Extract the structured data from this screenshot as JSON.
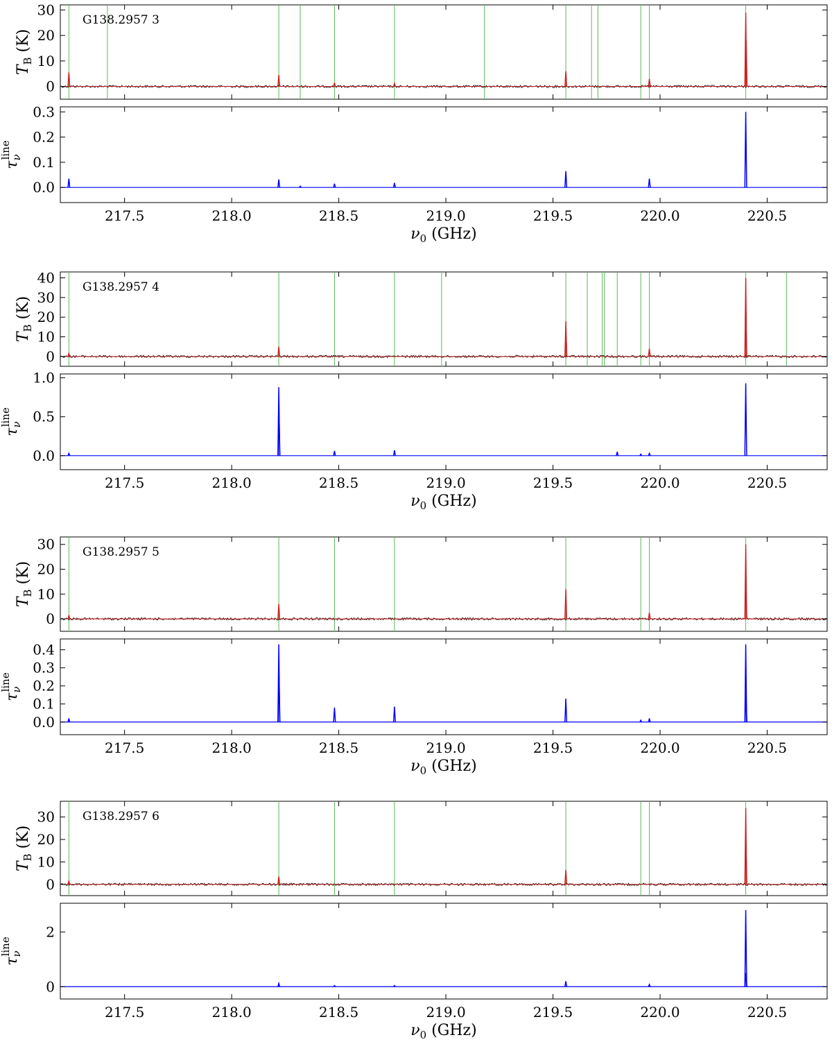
{
  "figure": {
    "x_axis_label_main": "ν",
    "x_axis_label_sub": "0",
    "x_axis_label_unit": " (GHz)",
    "tb_label_main": "T",
    "tb_label_sub": "B",
    "tb_label_unit": " (K)",
    "tau_label_main": "τ",
    "tau_label_sub": "ν",
    "tau_label_sup": "line"
  },
  "colors": {
    "observed_spectrum": "#000000",
    "model_spectrum": "#cc1f1f",
    "optical_depth": "#0000ff",
    "line_markers": "#5cb85c"
  },
  "chart_data": [
    {
      "type": "line",
      "title": "G138.2957 3",
      "xlim": [
        217.2,
        220.78
      ],
      "x_ticks": [
        "217.5",
        "218.0",
        "218.5",
        "219.0",
        "219.5",
        "220.0",
        "220.5"
      ],
      "line_markers_ghz": [
        217.24,
        217.42,
        218.22,
        218.32,
        218.48,
        218.76,
        219.18,
        219.56,
        219.68,
        219.71,
        219.91,
        219.95,
        220.4
      ],
      "tb": {
        "ylabel": "T_B (K)",
        "ylim": [
          -5,
          32
        ],
        "y_ticks": [
          "0",
          "10",
          "20",
          "30"
        ],
        "peaks": [
          {
            "x": 217.24,
            "y": 5.5
          },
          {
            "x": 218.22,
            "y": 4.5
          },
          {
            "x": 218.48,
            "y": 1.5
          },
          {
            "x": 218.76,
            "y": 1.2
          },
          {
            "x": 219.56,
            "y": 6.0
          },
          {
            "x": 219.95,
            "y": 3.0
          },
          {
            "x": 220.4,
            "y": 29
          },
          {
            "x": 220.402,
            "y": 18
          }
        ]
      },
      "tau": {
        "ylabel": "τ_ν^line",
        "ylim": [
          -0.06,
          0.32
        ],
        "y_ticks": [
          "0.0",
          "0.1",
          "0.2",
          "0.3"
        ],
        "peaks": [
          {
            "x": 217.24,
            "y": 0.035
          },
          {
            "x": 218.22,
            "y": 0.032
          },
          {
            "x": 218.32,
            "y": 0.005
          },
          {
            "x": 218.48,
            "y": 0.015
          },
          {
            "x": 218.76,
            "y": 0.018
          },
          {
            "x": 219.56,
            "y": 0.065
          },
          {
            "x": 219.95,
            "y": 0.035
          },
          {
            "x": 220.4,
            "y": 0.3
          }
        ]
      }
    },
    {
      "type": "line",
      "title": "G138.2957 4",
      "xlim": [
        217.2,
        220.78
      ],
      "x_ticks": [
        "217.5",
        "218.0",
        "218.5",
        "219.0",
        "219.5",
        "220.0",
        "220.5"
      ],
      "line_markers_ghz": [
        217.24,
        218.22,
        218.48,
        218.76,
        218.98,
        219.56,
        219.66,
        219.73,
        219.74,
        219.8,
        219.91,
        219.95,
        220.4,
        220.59
      ],
      "tb": {
        "ylabel": "T_B (K)",
        "ylim": [
          -5,
          43
        ],
        "y_ticks": [
          "0",
          "10",
          "20",
          "30",
          "40"
        ],
        "peaks": [
          {
            "x": 217.24,
            "y": 1.5
          },
          {
            "x": 218.22,
            "y": 5.0
          },
          {
            "x": 219.56,
            "y": 18
          },
          {
            "x": 219.561,
            "y": 11
          },
          {
            "x": 219.95,
            "y": 4.0
          },
          {
            "x": 220.4,
            "y": 40
          },
          {
            "x": 220.401,
            "y": 13
          }
        ]
      },
      "tau": {
        "ylabel": "τ_ν^line",
        "ylim": [
          -0.18,
          1.05
        ],
        "y_ticks": [
          "0.0",
          "0.5",
          "1.0"
        ],
        "peaks": [
          {
            "x": 217.24,
            "y": 0.03
          },
          {
            "x": 218.22,
            "y": 0.88
          },
          {
            "x": 218.221,
            "y": 0.55
          },
          {
            "x": 218.48,
            "y": 0.06
          },
          {
            "x": 218.76,
            "y": 0.07
          },
          {
            "x": 219.8,
            "y": 0.05
          },
          {
            "x": 219.91,
            "y": 0.02
          },
          {
            "x": 219.95,
            "y": 0.03
          },
          {
            "x": 220.4,
            "y": 0.93
          }
        ]
      }
    },
    {
      "type": "line",
      "title": "G138.2957 5",
      "xlim": [
        217.2,
        220.78
      ],
      "x_ticks": [
        "217.5",
        "218.0",
        "218.5",
        "219.0",
        "219.5",
        "220.0",
        "220.5"
      ],
      "line_markers_ghz": [
        217.24,
        218.22,
        218.48,
        218.76,
        219.56,
        219.91,
        219.95,
        220.4
      ],
      "tb": {
        "ylabel": "T_B (K)",
        "ylim": [
          -5,
          33
        ],
        "y_ticks": [
          "0",
          "10",
          "20",
          "30"
        ],
        "peaks": [
          {
            "x": 217.24,
            "y": 1.5
          },
          {
            "x": 218.22,
            "y": 6.0
          },
          {
            "x": 219.56,
            "y": 12
          },
          {
            "x": 219.95,
            "y": 2.5
          },
          {
            "x": 220.4,
            "y": 30
          },
          {
            "x": 220.401,
            "y": 11
          }
        ]
      },
      "tau": {
        "ylabel": "τ_ν^line",
        "ylim": [
          -0.07,
          0.46
        ],
        "y_ticks": [
          "0.0",
          "0.1",
          "0.2",
          "0.3",
          "0.4"
        ],
        "peaks": [
          {
            "x": 217.24,
            "y": 0.02
          },
          {
            "x": 218.22,
            "y": 0.43
          },
          {
            "x": 218.221,
            "y": 0.26
          },
          {
            "x": 218.48,
            "y": 0.08
          },
          {
            "x": 218.76,
            "y": 0.085
          },
          {
            "x": 219.56,
            "y": 0.13
          },
          {
            "x": 219.91,
            "y": 0.01
          },
          {
            "x": 219.95,
            "y": 0.02
          },
          {
            "x": 220.4,
            "y": 0.43
          },
          {
            "x": 220.401,
            "y": 0.15
          }
        ]
      }
    },
    {
      "type": "line",
      "title": "G138.2957 6",
      "xlim": [
        217.2,
        220.78
      ],
      "x_ticks": [
        "217.5",
        "218.0",
        "218.5",
        "219.0",
        "219.5",
        "220.0",
        "220.5"
      ],
      "line_markers_ghz": [
        217.24,
        218.22,
        218.48,
        218.76,
        219.56,
        219.91,
        219.95,
        220.4
      ],
      "tb": {
        "ylabel": "T_B (K)",
        "ylim": [
          -5,
          37
        ],
        "y_ticks": [
          "0",
          "10",
          "20",
          "30"
        ],
        "peaks": [
          {
            "x": 217.24,
            "y": 1.5
          },
          {
            "x": 218.22,
            "y": 3.5
          },
          {
            "x": 219.56,
            "y": 6.5
          },
          {
            "x": 220.4,
            "y": 34
          },
          {
            "x": 220.401,
            "y": 18
          }
        ]
      },
      "tau": {
        "ylabel": "τ_ν^line",
        "ylim": [
          -0.45,
          3.05
        ],
        "y_ticks": [
          "0",
          "2"
        ],
        "peaks": [
          {
            "x": 218.22,
            "y": 0.12
          },
          {
            "x": 218.48,
            "y": 0.04
          },
          {
            "x": 218.76,
            "y": 0.04
          },
          {
            "x": 219.56,
            "y": 0.2
          },
          {
            "x": 219.95,
            "y": 0.08
          },
          {
            "x": 220.4,
            "y": 2.8
          },
          {
            "x": 220.401,
            "y": 0.5
          }
        ]
      }
    }
  ]
}
